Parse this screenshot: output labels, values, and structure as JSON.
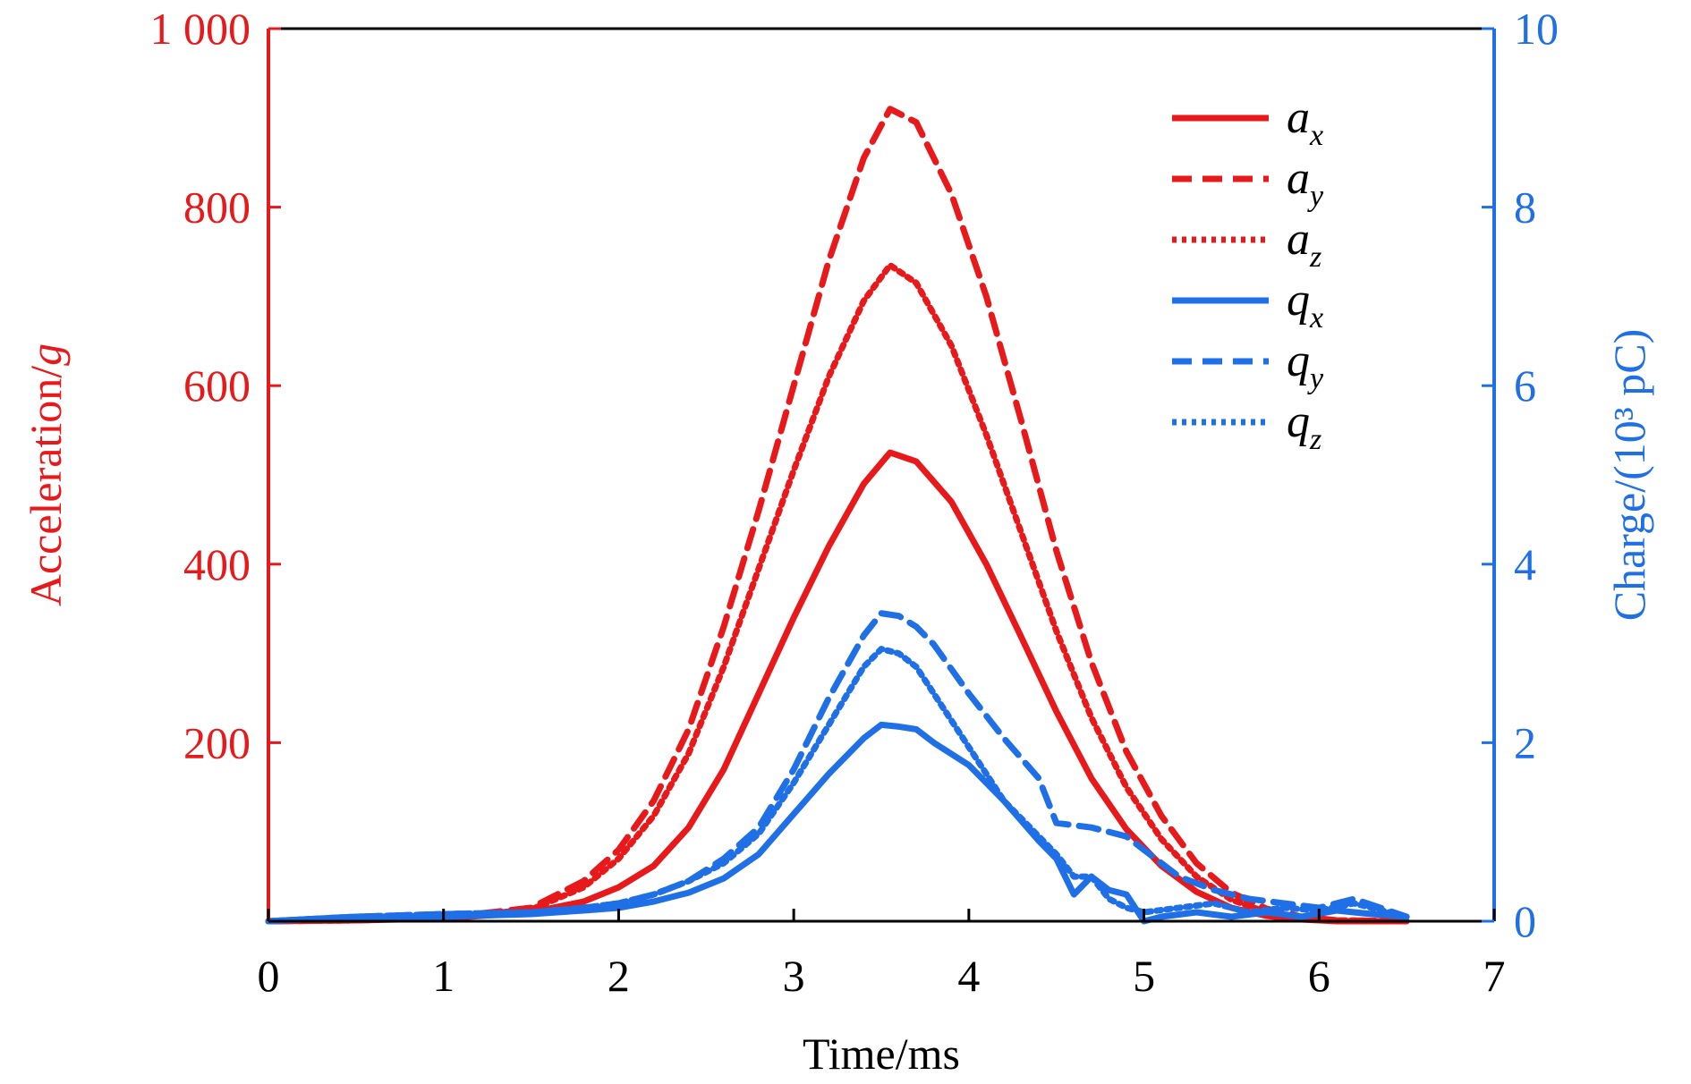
{
  "colors": {
    "acceleration": "#e8191b",
    "charge": "#1f6fe6",
    "frame": "#000000",
    "background": "#ffffff"
  },
  "chart_data": {
    "type": "line",
    "xlabel": "Time/ms",
    "ylabel_left": "Acceleration/",
    "ylabel_left_unit": "g",
    "ylabel_right": "Charge/(10³ pC)",
    "xlim": [
      0,
      7
    ],
    "ylim_left": [
      0,
      1000
    ],
    "ylim_right": [
      0,
      10
    ],
    "x_ticks": [
      0,
      1,
      2,
      3,
      4,
      5,
      6,
      7
    ],
    "x_tick_labels": [
      "0",
      "1",
      "2",
      "3",
      "4",
      "5",
      "6",
      "7"
    ],
    "y_left_ticks": [
      200,
      400,
      600,
      800,
      1000
    ],
    "y_left_tick_labels": [
      "200",
      "400",
      "600",
      "800",
      "1 000"
    ],
    "y_right_ticks": [
      0,
      2,
      4,
      6,
      8,
      10
    ],
    "y_right_tick_labels": [
      "0",
      "2",
      "4",
      "6",
      "8",
      "10"
    ],
    "grid": false,
    "legend_position": "top-right",
    "series": [
      {
        "name": "a",
        "sub": "x",
        "axis": "left",
        "color_key": "acceleration",
        "dash": "solid",
        "x": [
          0,
          0.5,
          1.0,
          1.5,
          1.8,
          2.0,
          2.2,
          2.4,
          2.6,
          2.8,
          3.0,
          3.2,
          3.4,
          3.55,
          3.7,
          3.9,
          4.1,
          4.3,
          4.5,
          4.7,
          4.9,
          5.1,
          5.3,
          5.5,
          5.7,
          5.9,
          6.1,
          6.5
        ],
        "y": [
          0,
          1,
          3,
          10,
          22,
          38,
          62,
          105,
          170,
          255,
          340,
          420,
          490,
          525,
          515,
          470,
          400,
          318,
          235,
          160,
          103,
          62,
          33,
          15,
          6,
          2,
          0,
          0
        ]
      },
      {
        "name": "a",
        "sub": "y",
        "axis": "left",
        "color_key": "acceleration",
        "dash": "dashed",
        "x": [
          0,
          0.5,
          1.0,
          1.5,
          1.8,
          2.0,
          2.2,
          2.4,
          2.6,
          2.8,
          3.0,
          3.2,
          3.4,
          3.55,
          3.7,
          3.9,
          4.1,
          4.3,
          4.5,
          4.7,
          4.9,
          5.1,
          5.3,
          5.5,
          5.7,
          5.9,
          6.1,
          6.5
        ],
        "y": [
          0,
          1,
          4,
          15,
          45,
          80,
          135,
          215,
          330,
          460,
          600,
          740,
          855,
          910,
          895,
          815,
          700,
          560,
          415,
          290,
          190,
          118,
          65,
          32,
          14,
          5,
          1,
          0
        ]
      },
      {
        "name": "a",
        "sub": "z",
        "axis": "left",
        "color_key": "acceleration",
        "dash": "dotted",
        "x": [
          0,
          0.5,
          1.0,
          1.5,
          1.8,
          2.0,
          2.2,
          2.4,
          2.6,
          2.8,
          3.0,
          3.2,
          3.4,
          3.55,
          3.7,
          3.9,
          4.1,
          4.3,
          4.5,
          4.7,
          4.9,
          5.1,
          5.3,
          5.5,
          5.7,
          5.9,
          6.1,
          6.5
        ],
        "y": [
          0,
          1,
          4,
          13,
          38,
          70,
          118,
          188,
          285,
          395,
          505,
          610,
          695,
          735,
          715,
          645,
          545,
          435,
          325,
          228,
          150,
          92,
          50,
          24,
          10,
          3,
          1,
          0
        ]
      },
      {
        "name": "q",
        "sub": "x",
        "axis": "right",
        "color_key": "charge",
        "dash": "solid",
        "x": [
          0,
          0.5,
          1.0,
          1.5,
          1.8,
          2.0,
          2.2,
          2.4,
          2.6,
          2.8,
          3.0,
          3.2,
          3.4,
          3.5,
          3.6,
          3.7,
          3.8,
          4.0,
          4.2,
          4.4,
          4.5,
          4.6,
          4.7,
          4.8,
          4.9,
          5.0,
          5.1,
          5.3,
          5.5,
          5.7,
          5.9,
          6.1,
          6.3,
          6.5
        ],
        "y": [
          0,
          0.05,
          0.05,
          0.08,
          0.12,
          0.15,
          0.22,
          0.32,
          0.48,
          0.75,
          1.2,
          1.65,
          2.05,
          2.2,
          2.18,
          2.15,
          2.0,
          1.75,
          1.35,
          0.9,
          0.7,
          0.3,
          0.5,
          0.35,
          0.3,
          0.0,
          0.05,
          0.1,
          0.05,
          0.1,
          0.05,
          0.12,
          0.08,
          0.05
        ]
      },
      {
        "name": "q",
        "sub": "y",
        "axis": "right",
        "color_key": "charge",
        "dash": "dashed",
        "x": [
          0,
          0.5,
          1.0,
          1.5,
          1.8,
          2.0,
          2.2,
          2.4,
          2.6,
          2.8,
          3.0,
          3.2,
          3.4,
          3.5,
          3.6,
          3.7,
          3.8,
          4.0,
          4.2,
          4.4,
          4.5,
          4.7,
          4.9,
          5.0,
          5.2,
          5.4,
          5.6,
          5.8,
          6.0,
          6.2,
          6.5
        ],
        "y": [
          0,
          0.05,
          0.08,
          0.1,
          0.15,
          0.2,
          0.3,
          0.45,
          0.7,
          1.05,
          1.7,
          2.5,
          3.2,
          3.45,
          3.42,
          3.3,
          3.1,
          2.55,
          2.05,
          1.6,
          1.1,
          1.05,
          0.95,
          0.8,
          0.5,
          0.35,
          0.25,
          0.2,
          0.15,
          0.25,
          0.05
        ]
      },
      {
        "name": "q",
        "sub": "z",
        "axis": "right",
        "color_key": "charge",
        "dash": "dotted",
        "x": [
          0,
          0.5,
          1.0,
          1.5,
          1.8,
          2.0,
          2.2,
          2.4,
          2.6,
          2.8,
          3.0,
          3.2,
          3.4,
          3.5,
          3.6,
          3.7,
          3.8,
          4.0,
          4.2,
          4.4,
          4.5,
          4.6,
          4.7,
          4.8,
          4.9,
          5.0,
          5.2,
          5.4,
          5.6,
          5.8,
          6.0,
          6.2,
          6.5
        ],
        "y": [
          0,
          0.05,
          0.08,
          0.1,
          0.15,
          0.2,
          0.3,
          0.45,
          0.65,
          0.98,
          1.55,
          2.2,
          2.85,
          3.05,
          3.0,
          2.85,
          2.55,
          1.95,
          1.35,
          0.95,
          0.75,
          0.5,
          0.5,
          0.25,
          0.15,
          0.1,
          0.15,
          0.2,
          0.1,
          0.15,
          0.12,
          0.2,
          0.05
        ]
      }
    ]
  }
}
